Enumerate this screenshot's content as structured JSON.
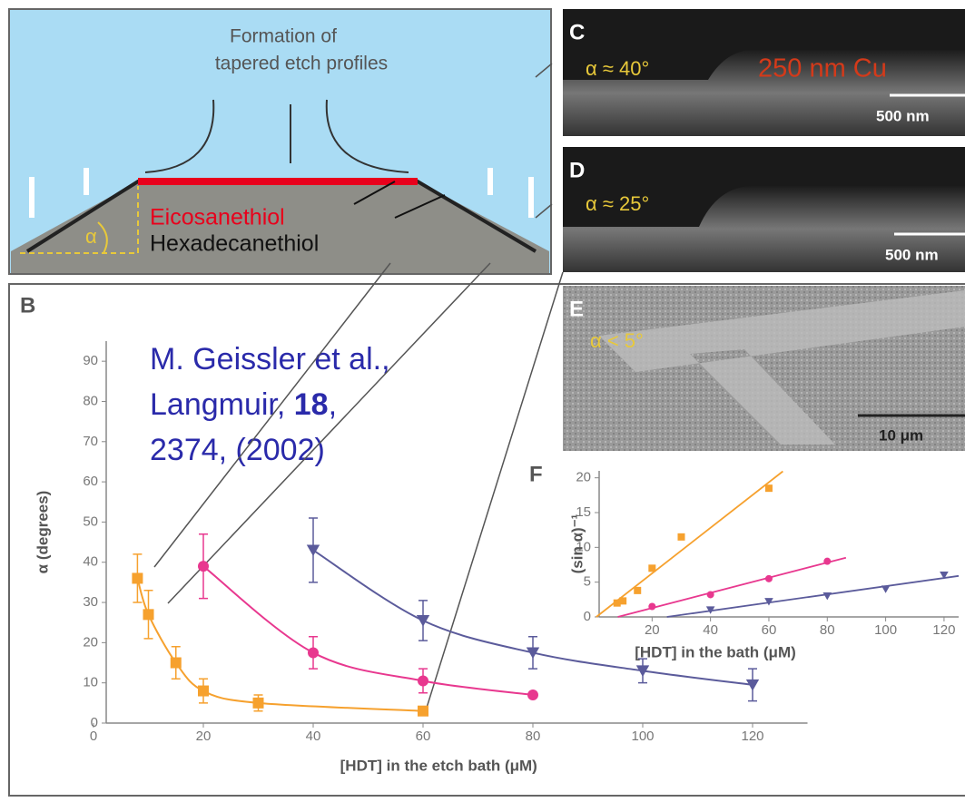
{
  "panels": {
    "a_title_1": "Formation of",
    "a_title_2": "tapered etch profiles",
    "eicosanethiol": "Eicosanethiol",
    "hexadecanethiol": "Hexadecanethiol",
    "alpha": "α",
    "c_label": "C",
    "c_angle": "α ≈ 40°",
    "c_material": "250 nm Cu",
    "c_scale": "500 nm",
    "d_label": "D",
    "d_angle": "α ≈ 25°",
    "d_scale": "500 nm",
    "b_label": "B",
    "e_label": "E",
    "e_angle": "α < 5°",
    "e_scale": "10 μm",
    "f_label": "F",
    "citation": {
      "line1": "M. Geissler et al.,",
      "line2a": "Langmuir, ",
      "line2b": "18",
      "line2c": ",",
      "line3": "2374, (2002)"
    }
  },
  "chart_data": [
    {
      "type": "scatter",
      "xlabel": "[HDT] in the etch bath (μM)",
      "ylabel": "α (degrees)",
      "xlim": [
        0,
        130
      ],
      "ylim": [
        0,
        95
      ],
      "xticks": [
        0,
        20,
        40,
        60,
        80,
        100,
        120
      ],
      "yticks": [
        0,
        10,
        20,
        30,
        40,
        50,
        60,
        70,
        80,
        90
      ],
      "series": [
        {
          "color": "#f6a12e",
          "marker": "square",
          "x": [
            8,
            10,
            15,
            20,
            30,
            60
          ],
          "values": [
            36,
            27,
            15,
            8,
            5,
            3
          ],
          "errors": [
            6,
            6,
            4,
            3,
            2,
            1
          ]
        },
        {
          "color": "#e8388f",
          "marker": "circle",
          "x": [
            20,
            40,
            60,
            80
          ],
          "values": [
            39,
            17.5,
            10.5,
            7
          ],
          "errors": [
            8,
            4,
            3,
            0
          ]
        },
        {
          "color": "#5b5b9b",
          "marker": "triangle",
          "x": [
            40,
            60,
            80,
            100,
            120
          ],
          "values": [
            43,
            25.5,
            17.5,
            13,
            9.5
          ],
          "errors": [
            8,
            5,
            4,
            3,
            4
          ]
        }
      ]
    },
    {
      "type": "scatter",
      "xlabel": "[HDT] in the bath (μM)",
      "ylabel": "(sin α)⁻¹",
      "xlim": [
        0,
        125
      ],
      "ylim": [
        0,
        21
      ],
      "xticks": [
        20,
        40,
        60,
        80,
        100,
        120
      ],
      "yticks": [
        0,
        5,
        10,
        15,
        20
      ],
      "series": [
        {
          "color": "#f6a12e",
          "marker": "square",
          "x": [
            8,
            10,
            15,
            20,
            30,
            60
          ],
          "values": [
            2,
            2.3,
            3.8,
            7,
            11.5,
            18.5
          ]
        },
        {
          "color": "#e8388f",
          "marker": "circle",
          "x": [
            20,
            40,
            60,
            80
          ],
          "values": [
            1.5,
            3.2,
            5.5,
            8
          ]
        },
        {
          "color": "#5b5b9b",
          "marker": "triangle",
          "x": [
            40,
            60,
            80,
            100,
            120
          ],
          "values": [
            1,
            2.2,
            3,
            4,
            6
          ]
        }
      ]
    }
  ]
}
